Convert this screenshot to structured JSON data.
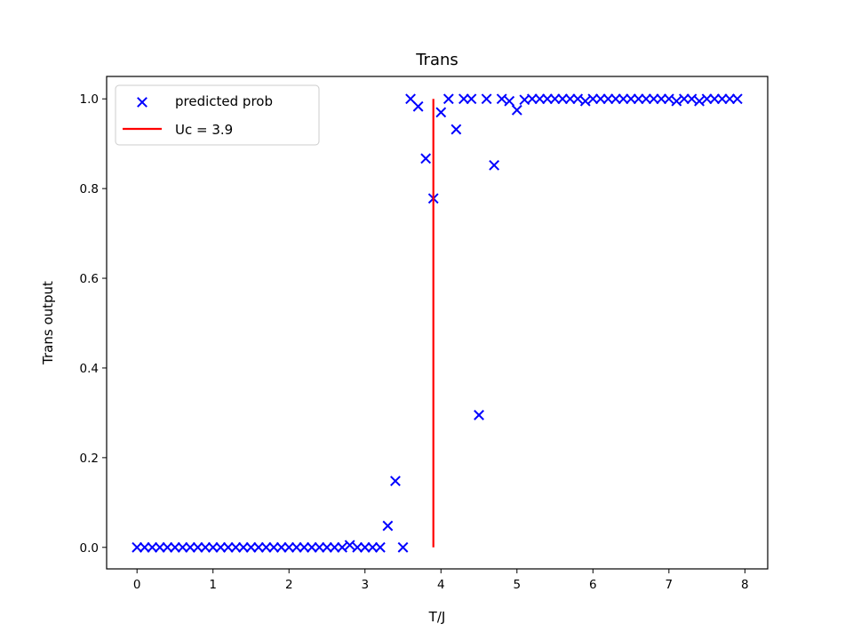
{
  "chart_data": {
    "type": "scatter",
    "title": "Trans",
    "xlabel": "T/J",
    "ylabel": "Trans output",
    "xlim": [
      -0.4,
      8.3
    ],
    "ylim": [
      -0.048,
      1.05
    ],
    "xticks": [
      "0",
      "1",
      "2",
      "3",
      "4",
      "5",
      "6",
      "7",
      "8"
    ],
    "yticks": [
      "0.0",
      "0.2",
      "0.4",
      "0.6",
      "0.8",
      "1.0"
    ],
    "legend_position": "upper-left",
    "series": [
      {
        "name": "predicted prob",
        "marker": "x",
        "color": "#0000ff",
        "x": [
          0.0,
          0.1,
          0.2,
          0.3,
          0.4,
          0.5,
          0.6,
          0.7,
          0.8,
          0.9,
          1.0,
          1.1,
          1.2,
          1.3,
          1.4,
          1.5,
          1.6,
          1.7,
          1.8,
          1.9,
          2.0,
          2.1,
          2.2,
          2.3,
          2.4,
          2.5,
          2.6,
          2.7,
          2.8,
          2.9,
          3.0,
          3.1,
          3.2,
          3.3,
          3.4,
          3.5,
          3.6,
          3.7,
          3.8,
          3.9,
          4.0,
          4.1,
          4.2,
          4.3,
          4.4,
          4.5,
          4.6,
          4.8,
          4.9,
          5.0,
          5.1,
          5.2,
          5.3,
          5.4,
          5.5,
          5.6,
          5.7,
          5.8,
          5.9,
          6.0,
          6.1,
          6.2,
          6.3,
          6.4,
          6.5,
          6.6,
          6.7,
          6.8,
          6.9,
          7.0,
          7.1,
          7.2,
          7.3,
          7.4,
          7.5,
          7.6,
          7.7,
          7.8,
          7.9,
          4.7
        ],
        "y": [
          0.0,
          0.0,
          0.0,
          0.0,
          0.0,
          0.0,
          0.0,
          0.0,
          0.0,
          0.0,
          0.0,
          0.0,
          0.0,
          0.0,
          0.0,
          0.0,
          0.0,
          0.0,
          0.0,
          0.0,
          0.0,
          0.0,
          0.0,
          0.0,
          0.0,
          0.0,
          0.0,
          0.0,
          0.005,
          0.0,
          0.0,
          0.0,
          0.0,
          0.048,
          0.148,
          0.0,
          1.0,
          0.983,
          0.867,
          0.778,
          0.97,
          1.0,
          0.932,
          1.0,
          1.0,
          0.295,
          1.0,
          1.0,
          0.995,
          0.975,
          0.998,
          1.0,
          1.0,
          1.0,
          1.0,
          1.0,
          1.0,
          1.0,
          0.995,
          1.0,
          1.0,
          1.0,
          1.0,
          1.0,
          1.0,
          1.0,
          1.0,
          1.0,
          1.0,
          1.0,
          0.995,
          1.0,
          1.0,
          0.995,
          1.0,
          1.0,
          1.0,
          1.0,
          1.0,
          0.852
        ]
      },
      {
        "name": "Uc = 3.9",
        "type": "vline",
        "color": "#ff0000",
        "x": 3.9,
        "y_range": [
          0.0,
          1.0
        ]
      }
    ]
  }
}
